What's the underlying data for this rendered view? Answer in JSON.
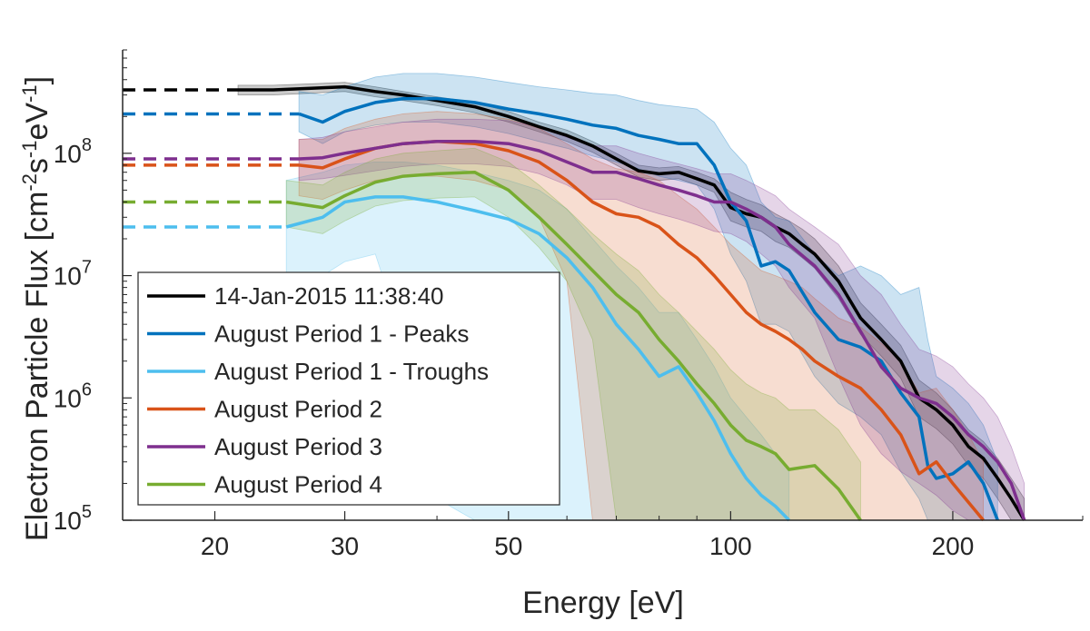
{
  "chart_data": {
    "type": "line",
    "title": "",
    "xlabel": "Energy [eV]",
    "ylabel_prefix": "Electron Particle Flux [cm",
    "ylabel_exp1": "-2",
    "ylabel_s": "s",
    "ylabel_exp2": "-1",
    "ylabel_ev": "eV",
    "ylabel_exp3": "-1",
    "ylabel_suffix": "]",
    "xscale": "log",
    "yscale": "log",
    "xlim": [
      15,
      300
    ],
    "ylim": [
      100000,
      700000000
    ],
    "x_ticks": [
      20,
      30,
      50,
      100,
      200
    ],
    "x_tick_labels": [
      "20",
      "30",
      "50",
      "100",
      "200"
    ],
    "y_ticks": [
      100000,
      1000000,
      10000000,
      100000000
    ],
    "y_tick_base": "10",
    "y_tick_exponents": [
      "5",
      "6",
      "7",
      "8"
    ],
    "legend_position": "bottom-left",
    "series": [
      {
        "name": "14-Jan-2015 11:38:40",
        "color": "#000000",
        "dashed_extrapolation": {
          "x": [
            15,
            21.5
          ],
          "y": [
            330000000,
            330000000
          ]
        },
        "x": [
          21.5,
          24,
          27,
          30,
          33,
          36,
          40,
          45,
          50,
          55,
          60,
          65,
          70,
          75,
          80,
          85,
          90,
          95,
          100,
          105,
          110,
          115,
          120,
          125,
          130,
          140,
          150,
          160,
          170,
          180,
          190,
          200,
          210,
          220,
          230,
          240,
          250
        ],
        "y": [
          330000000,
          330000000,
          340000000,
          350000000,
          320000000,
          300000000,
          270000000,
          240000000,
          200000000,
          165000000,
          140000000,
          115000000,
          90000000,
          72000000,
          68000000,
          70000000,
          62000000,
          55000000,
          36000000,
          32000000,
          30000000,
          25000000,
          22000000,
          18000000,
          15000000,
          9000000,
          4500000,
          3000000,
          2000000,
          1000000,
          800000,
          600000,
          400000,
          320000,
          220000,
          150000,
          100000
        ],
        "band_upper": [
          360000000,
          360000000,
          370000000,
          380000000,
          350000000,
          320000000,
          290000000,
          260000000,
          220000000,
          180000000,
          155000000,
          125000000,
          100000000,
          80000000,
          76000000,
          78000000,
          70000000,
          62000000,
          48000000,
          42000000,
          38000000,
          32000000,
          28000000,
          24000000,
          20000000,
          12000000,
          6000000,
          4000000,
          2700000,
          1400000,
          1100000,
          800000,
          550000,
          440000,
          320000,
          220000,
          150000
        ],
        "band_lower": [
          300000000,
          300000000,
          310000000,
          320000000,
          290000000,
          270000000,
          245000000,
          215000000,
          180000000,
          150000000,
          125000000,
          102000000,
          80000000,
          64000000,
          60000000,
          62000000,
          55000000,
          48000000,
          28000000,
          25000000,
          23000000,
          19000000,
          17000000,
          14000000,
          11500000,
          6500000,
          3300000,
          2200000,
          1450000,
          700000,
          560000,
          420000,
          280000,
          220000,
          150000,
          100000,
          100000
        ]
      },
      {
        "name": "August Period 1 - Peaks",
        "color": "#0072BD",
        "dashed_extrapolation": {
          "x": [
            15,
            26
          ],
          "y": [
            210000000,
            210000000
          ]
        },
        "x": [
          26,
          28,
          30,
          33,
          36,
          40,
          45,
          50,
          55,
          60,
          65,
          70,
          75,
          80,
          85,
          90,
          95,
          100,
          105,
          110,
          115,
          120,
          130,
          140,
          150,
          160,
          170,
          180,
          185,
          190,
          200,
          210,
          220,
          230
        ],
        "y": [
          210000000,
          180000000,
          220000000,
          260000000,
          280000000,
          280000000,
          260000000,
          230000000,
          210000000,
          190000000,
          170000000,
          160000000,
          140000000,
          130000000,
          120000000,
          120000000,
          80000000,
          40000000,
          28000000,
          12000000,
          13000000,
          11000000,
          5000000,
          3000000,
          2600000,
          2000000,
          1100000,
          700000,
          280000,
          220000,
          240000,
          300000,
          200000,
          100000
        ],
        "band_upper": [
          320000000,
          300000000,
          350000000,
          420000000,
          450000000,
          450000000,
          420000000,
          380000000,
          350000000,
          330000000,
          310000000,
          300000000,
          270000000,
          250000000,
          240000000,
          230000000,
          180000000,
          110000000,
          80000000,
          40000000,
          30000000,
          28000000,
          15000000,
          10000000,
          12000000,
          10000000,
          7000000,
          8000000,
          3000000,
          1500000,
          1200000,
          900000,
          600000,
          300000
        ],
        "band_lower": [
          150000000,
          120000000,
          150000000,
          170000000,
          180000000,
          180000000,
          165000000,
          145000000,
          125000000,
          110000000,
          95000000,
          85000000,
          75000000,
          65000000,
          60000000,
          55000000,
          35000000,
          15000000,
          9000000,
          4000000,
          4000000,
          3500000,
          1500000,
          900000,
          700000,
          500000,
          250000,
          150000,
          100000,
          100000,
          100000,
          100000,
          100000,
          100000
        ]
      },
      {
        "name": "August Period 1 - Troughs",
        "color": "#4DBEEE",
        "dashed_extrapolation": {
          "x": [
            15,
            25
          ],
          "y": [
            25000000,
            25000000
          ]
        },
        "x": [
          25,
          28,
          30,
          33,
          36,
          40,
          45,
          50,
          55,
          60,
          65,
          70,
          75,
          80,
          85,
          90,
          95,
          100,
          105,
          110,
          115,
          120
        ],
        "y": [
          25000000,
          30000000,
          40000000,
          44000000,
          44000000,
          40000000,
          34000000,
          29000000,
          22000000,
          14000000,
          8000000,
          4000000,
          2500000,
          1500000,
          1800000,
          1100000,
          650000,
          350000,
          220000,
          160000,
          130000,
          100000
        ],
        "band_upper": [
          60000000,
          70000000,
          80000000,
          85000000,
          85000000,
          80000000,
          70000000,
          60000000,
          50000000,
          35000000,
          20000000,
          12000000,
          8000000,
          5000000,
          5000000,
          3000000,
          1800000,
          1000000,
          700000,
          500000,
          350000,
          250000
        ],
        "band_lower": [
          10000000,
          10000000,
          13000000,
          15000000,
          3000000,
          150000,
          100000,
          100000,
          100000,
          100000,
          100000,
          100000,
          100000,
          100000,
          100000,
          100000,
          100000,
          100000,
          100000,
          100000,
          100000,
          100000
        ]
      },
      {
        "name": "August Period 2",
        "color": "#D95319",
        "dashed_extrapolation": {
          "x": [
            15,
            26
          ],
          "y": [
            80000000,
            80000000
          ]
        },
        "x": [
          26,
          28,
          30,
          33,
          36,
          40,
          45,
          50,
          55,
          60,
          65,
          70,
          75,
          80,
          85,
          90,
          95,
          100,
          105,
          110,
          115,
          120,
          125,
          130,
          140,
          150,
          160,
          170,
          180,
          190,
          200,
          210,
          220
        ],
        "y": [
          80000000,
          76000000,
          90000000,
          110000000,
          120000000,
          125000000,
          120000000,
          105000000,
          85000000,
          60000000,
          40000000,
          32000000,
          30000000,
          25000000,
          18000000,
          14000000,
          10000000,
          7000000,
          5000000,
          4000000,
          3500000,
          3000000,
          2500000,
          2000000,
          1500000,
          1200000,
          800000,
          500000,
          240000,
          300000,
          200000,
          140000,
          100000
        ],
        "band_upper": [
          130000000,
          130000000,
          160000000,
          190000000,
          210000000,
          220000000,
          210000000,
          190000000,
          160000000,
          120000000,
          90000000,
          75000000,
          70000000,
          60000000,
          45000000,
          35000000,
          25000000,
          18000000,
          14000000,
          11000000,
          10000000,
          9000000,
          8000000,
          6500000,
          4500000,
          3800000,
          2800000,
          2000000,
          1100000,
          1200000,
          800000,
          500000,
          300000
        ],
        "band_lower": [
          45000000,
          42000000,
          50000000,
          60000000,
          65000000,
          65000000,
          60000000,
          50000000,
          30000000,
          9000000,
          100000,
          100000,
          100000,
          100000,
          100000,
          100000,
          100000,
          100000,
          100000,
          100000,
          100000,
          100000,
          100000,
          100000,
          100000,
          100000,
          100000,
          100000,
          100000,
          100000,
          100000,
          100000,
          100000
        ]
      },
      {
        "name": "August Period 3",
        "color": "#7E2F8E",
        "dashed_extrapolation": {
          "x": [
            15,
            26
          ],
          "y": [
            90000000,
            90000000
          ]
        },
        "x": [
          26,
          28,
          30,
          33,
          36,
          40,
          45,
          50,
          55,
          60,
          65,
          70,
          75,
          80,
          85,
          90,
          95,
          100,
          105,
          110,
          115,
          120,
          130,
          140,
          150,
          160,
          170,
          180,
          190,
          200,
          210,
          220,
          230,
          240,
          250
        ],
        "y": [
          90000000,
          92000000,
          100000000,
          110000000,
          120000000,
          125000000,
          125000000,
          120000000,
          105000000,
          85000000,
          70000000,
          70000000,
          62000000,
          55000000,
          50000000,
          45000000,
          40000000,
          40000000,
          35000000,
          30000000,
          25000000,
          18000000,
          12000000,
          7000000,
          3500000,
          1800000,
          1200000,
          1000000,
          900000,
          700000,
          500000,
          400000,
          300000,
          200000,
          100000
        ],
        "band_upper": [
          130000000,
          135000000,
          150000000,
          165000000,
          180000000,
          190000000,
          190000000,
          185000000,
          165000000,
          135000000,
          115000000,
          115000000,
          100000000,
          90000000,
          82000000,
          75000000,
          68000000,
          68000000,
          60000000,
          52000000,
          45000000,
          35000000,
          25000000,
          18000000,
          10000000,
          7000000,
          4000000,
          2500000,
          2200000,
          1800000,
          1300000,
          1000000,
          700000,
          400000,
          200000
        ],
        "band_lower": [
          60000000,
          62000000,
          66000000,
          72000000,
          78000000,
          82000000,
          82000000,
          78000000,
          68000000,
          55000000,
          42000000,
          42000000,
          36000000,
          32000000,
          29000000,
          26000000,
          23000000,
          22000000,
          19000000,
          15000000,
          12000000,
          8000000,
          4500000,
          1500000,
          600000,
          350000,
          250000,
          200000,
          160000,
          120000,
          100000,
          100000,
          100000,
          100000,
          100000
        ]
      },
      {
        "name": "August Period 4",
        "color": "#77AC30",
        "dashed_extrapolation": {
          "x": [
            15,
            25
          ],
          "y": [
            40000000,
            40000000
          ]
        },
        "x": [
          25,
          28,
          30,
          33,
          36,
          40,
          45,
          50,
          55,
          60,
          65,
          70,
          75,
          80,
          85,
          90,
          95,
          100,
          105,
          110,
          115,
          120,
          125,
          130,
          140,
          150
        ],
        "y": [
          40000000,
          36000000,
          45000000,
          58000000,
          65000000,
          68000000,
          70000000,
          50000000,
          30000000,
          18000000,
          11000000,
          7000000,
          5000000,
          3000000,
          2000000,
          1300000,
          900000,
          600000,
          450000,
          400000,
          350000,
          260000,
          270000,
          280000,
          180000,
          100000
        ],
        "band_upper": [
          60000000,
          55000000,
          70000000,
          90000000,
          100000000,
          105000000,
          110000000,
          85000000,
          55000000,
          35000000,
          22000000,
          15000000,
          11000000,
          7000000,
          5000000,
          3500000,
          2500000,
          1700000,
          1300000,
          1100000,
          1000000,
          800000,
          800000,
          800000,
          550000,
          300000
        ],
        "band_lower": [
          25000000,
          22000000,
          28000000,
          37000000,
          41000000,
          43000000,
          44000000,
          30000000,
          17000000,
          9000000,
          3000000,
          100000,
          100000,
          100000,
          100000,
          100000,
          100000,
          100000,
          100000,
          100000,
          100000,
          100000,
          100000,
          100000,
          100000,
          100000
        ]
      }
    ]
  }
}
